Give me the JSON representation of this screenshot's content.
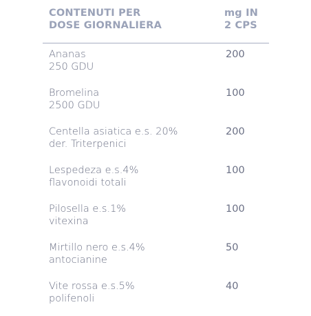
{
  "table": {
    "header": {
      "ingredient_lines": [
        "CONTENUTI PER",
        "DOSE GIORNALIERA"
      ],
      "amount_lines": [
        "mg IN",
        "2 CPS"
      ]
    },
    "rows": [
      {
        "name_lines": [
          "Ananas",
          "250 GDU"
        ],
        "value": "200"
      },
      {
        "name_lines": [
          "Bromelina",
          "2500 GDU"
        ],
        "value": "100"
      },
      {
        "name_lines": [
          "Centella asiatica e.s. 20%",
          "der. Triterpenici"
        ],
        "value": "200"
      },
      {
        "name_lines": [
          "Lespedeza e.s.4%",
          "flavonoidi totali"
        ],
        "value": "100"
      },
      {
        "name_lines": [
          "Pilosella e.s.1%",
          "vitexina"
        ],
        "value": "100"
      },
      {
        "name_lines": [
          "Mirtillo nero e.s.4%",
          "antocianine"
        ],
        "value": "50"
      },
      {
        "name_lines": [
          "Vite rossa e.s.5%",
          "polifenoli"
        ],
        "value": "40"
      }
    ]
  },
  "colors": {
    "header_text": "#9aa2b8",
    "body_text": "#6b7085",
    "divider": "#a7aec2",
    "background": "#ffffff"
  }
}
